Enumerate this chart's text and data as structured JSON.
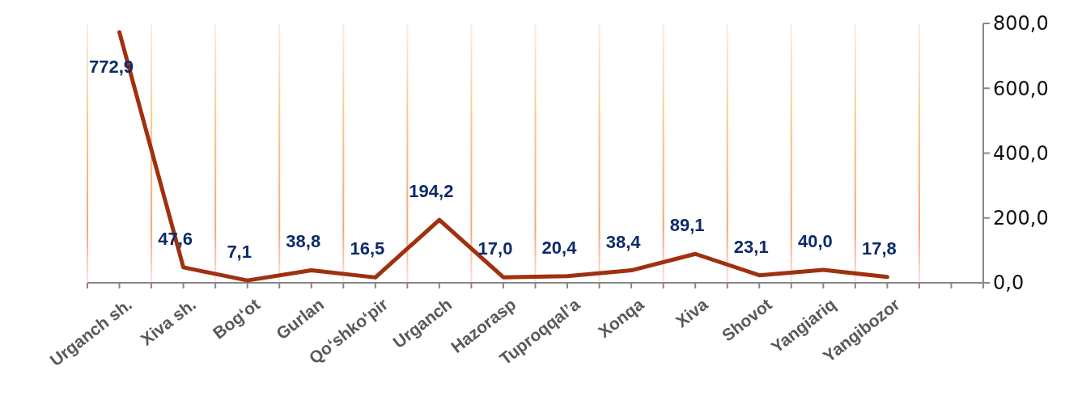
{
  "chart_data": {
    "type": "line",
    "categories": [
      "Urganch sh.",
      "Xiva sh.",
      "Bog‘ot",
      "Gurlan",
      "Qo‘shko‘pir",
      "Urganch",
      "Hazorasp",
      "Tuproqqal’a",
      "Xonqa",
      "Xiva",
      "Shovot",
      "Yangiariq",
      "Yangibozor",
      null
    ],
    "series": [
      {
        "color": "#a0300f",
        "values": [
          772.9,
          47.6,
          7.1,
          38.8,
          16.5,
          194.2,
          17.0,
          20.4,
          38.4,
          89.1,
          23.1,
          40.0,
          17.8,
          null
        ]
      }
    ],
    "ylim": [
      0,
      800
    ],
    "yticks": [
      {
        "value": 0,
        "label": "0,0"
      },
      {
        "value": 200,
        "label": "200,0"
      },
      {
        "value": 400,
        "label": "400,0"
      },
      {
        "value": 600,
        "label": "600,0"
      },
      {
        "value": 800,
        "label": "800,0"
      }
    ],
    "value_labels": [
      "772,9",
      "47,6",
      "7,1",
      "38,8",
      "16,5",
      "194,2",
      "17,0",
      "20,4",
      "38,4",
      "89,1",
      "23,1",
      "40,0",
      "17,8",
      null
    ],
    "grid": "x",
    "marker": "none",
    "line_style": "solid"
  }
}
